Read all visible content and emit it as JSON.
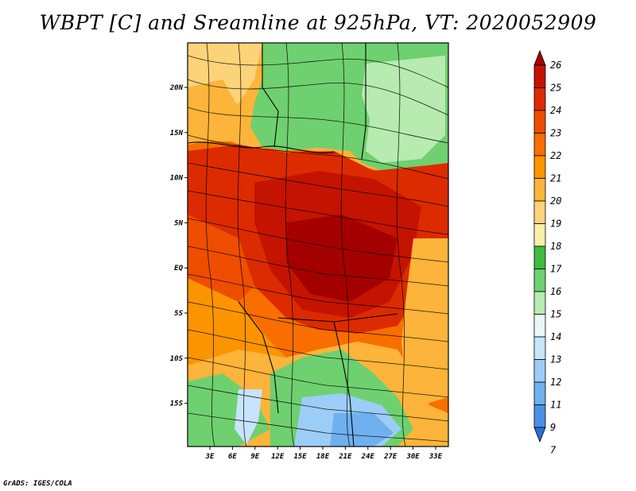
{
  "title": "WBPT [C] and Sreamline at 925hPa, VT: 2020052909",
  "credit": "GrADS: IGES/COLA",
  "lat_ticks": [
    "20N",
    "15N",
    "10N",
    "5N",
    "EQ",
    "5S",
    "10S",
    "15S"
  ],
  "lon_ticks": [
    "3E",
    "6E",
    "9E",
    "12E",
    "15E",
    "18E",
    "21E",
    "24E",
    "27E",
    "30E",
    "33E"
  ],
  "colorbar": {
    "labels": [
      "26",
      "25",
      "24",
      "23",
      "22",
      "21",
      "20",
      "19",
      "18",
      "17",
      "16",
      "15",
      "14",
      "13",
      "12",
      "11",
      "9",
      "7"
    ],
    "colors": [
      "#a50000",
      "#c41300",
      "#dc2b00",
      "#ef4d00",
      "#f86e00",
      "#fc9400",
      "#fcb43a",
      "#fdd37a",
      "#fcefaa",
      "#3fbb3f",
      "#6fd06f",
      "#b7ebb0",
      "#e8f7f5",
      "#c6e4fb",
      "#9ccdf6",
      "#6fb0ef",
      "#4a91e5",
      "#2a6ed8"
    ]
  }
}
